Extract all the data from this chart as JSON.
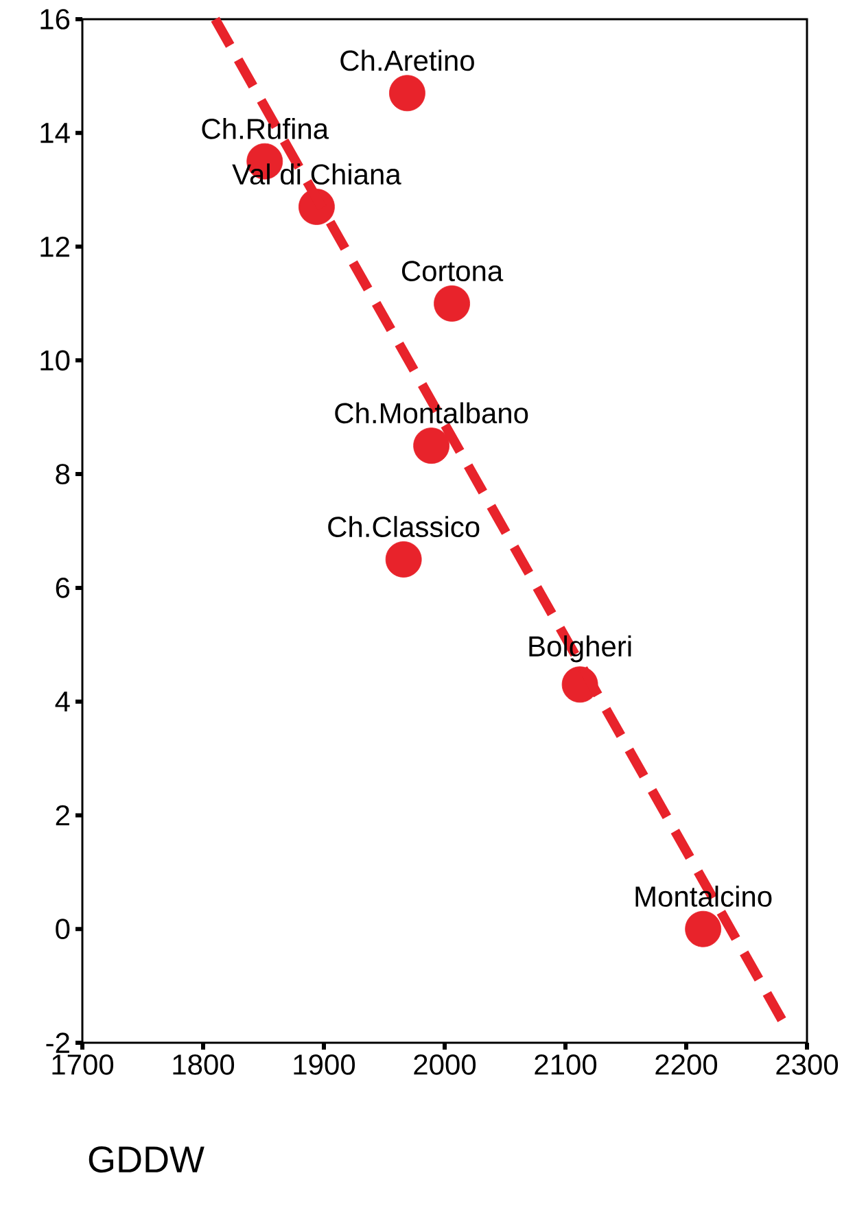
{
  "chart_data": {
    "type": "scatter",
    "xlabel": "GDDW",
    "xlim": [
      1700,
      2300
    ],
    "ylim": [
      -2,
      16
    ],
    "xticks": [
      1700,
      1800,
      1900,
      2000,
      2100,
      2200,
      2300
    ],
    "yticks": [
      -2,
      0,
      2,
      4,
      6,
      8,
      10,
      12,
      14,
      16
    ],
    "marker": "circle",
    "series": [
      {
        "type": "scatter",
        "color": "#e8232b",
        "x": [
          1969,
          1851,
          1894,
          2006,
          1989,
          1966,
          2112,
          2214
        ],
        "values": [
          14.7,
          13.5,
          12.7,
          11.0,
          8.5,
          6.5,
          4.3,
          0.0
        ]
      },
      {
        "type": "line",
        "color": "#e8232b",
        "x": [
          1810,
          2282
        ],
        "values": [
          16,
          -1.7
        ],
        "line_style": "dashed",
        "marker": "none"
      }
    ],
    "annotations": [
      {
        "text": "Ch.Aretino",
        "x": 1969,
        "y": 14.7
      },
      {
        "text": "Ch.Rufina",
        "x": 1851,
        "y": 13.5
      },
      {
        "text": "Val di Chiana",
        "x": 1894,
        "y": 12.7
      },
      {
        "text": "Cortona",
        "x": 2006,
        "y": 11.0
      },
      {
        "text": "Ch.Montalbano",
        "x": 1989,
        "y": 8.5
      },
      {
        "text": "Ch.Classico",
        "x": 1966,
        "y": 6.5
      },
      {
        "text": "Bolgheri",
        "x": 2112,
        "y": 4.3
      },
      {
        "text": "Montalcino",
        "x": 2214,
        "y": 0.0
      }
    ]
  }
}
